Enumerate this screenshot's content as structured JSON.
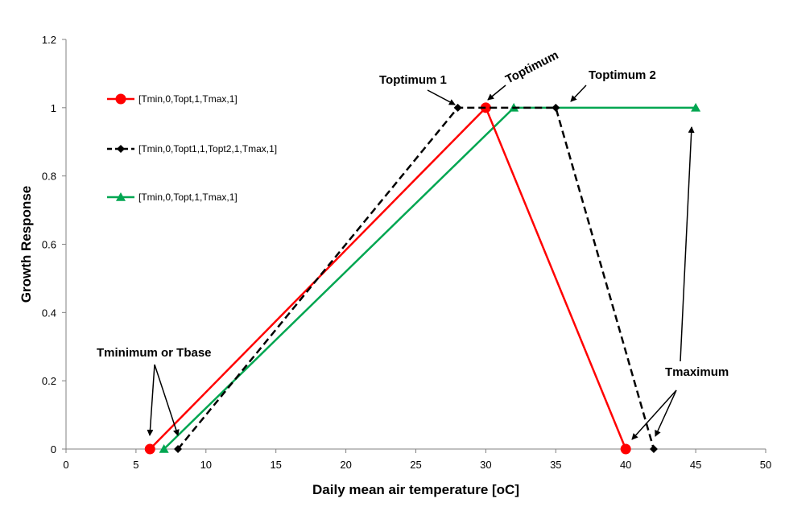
{
  "chart_data": {
    "type": "line",
    "xlabel": "Daily mean air temperature [oC]",
    "ylabel": "Growth Response",
    "xlim": [
      0,
      50
    ],
    "ylim": [
      0,
      1.2
    ],
    "xticks": [
      0,
      5,
      10,
      15,
      20,
      25,
      30,
      35,
      40,
      45,
      50
    ],
    "yticks": [
      0,
      0.2,
      0.4,
      0.6,
      0.8,
      1,
      1.2
    ],
    "xtick_labels": [
      "0",
      "5",
      "10",
      "15",
      "20",
      "25",
      "30",
      "35",
      "40",
      "45",
      "50"
    ],
    "ytick_labels": [
      "0",
      "0.2",
      "0.4",
      "0.6",
      "0.8",
      "1",
      "1.2"
    ],
    "grid": false,
    "legend_position": "top-left",
    "series": [
      {
        "name": "[Tmin,0,Topt,1,Tmax,1]",
        "color": "#ff0000",
        "dash": "solid",
        "marker": "circle",
        "x": [
          6,
          30,
          40
        ],
        "y": [
          0,
          1,
          0
        ]
      },
      {
        "name": "[Tmin,0,Topt1,1,Topt2,1,Tmax,1]",
        "color": "#000000",
        "dash": "dashed",
        "marker": "diamond",
        "x": [
          8,
          28,
          35,
          42
        ],
        "y": [
          0,
          1,
          1,
          0
        ]
      },
      {
        "name": "[Tmin,0,Topt,1,Tmax,1]",
        "color": "#00a651",
        "dash": "solid",
        "marker": "triangle",
        "x": [
          7,
          32,
          45
        ],
        "y": [
          0,
          1,
          1
        ]
      }
    ],
    "annotations": [
      {
        "text": "Toptimum 1",
        "x": 27.8,
        "y": 1.0
      },
      {
        "text": "Toptimum",
        "x": 30.1,
        "y": 1.0
      },
      {
        "text": "Toptimum 2",
        "x": 36.2,
        "y": 1.0
      },
      {
        "text": "Tminimum or Tbase",
        "x": 6.0,
        "y": 0.0
      },
      {
        "text": "Tmaximum",
        "x": 40.2,
        "y": 0.0
      }
    ]
  }
}
